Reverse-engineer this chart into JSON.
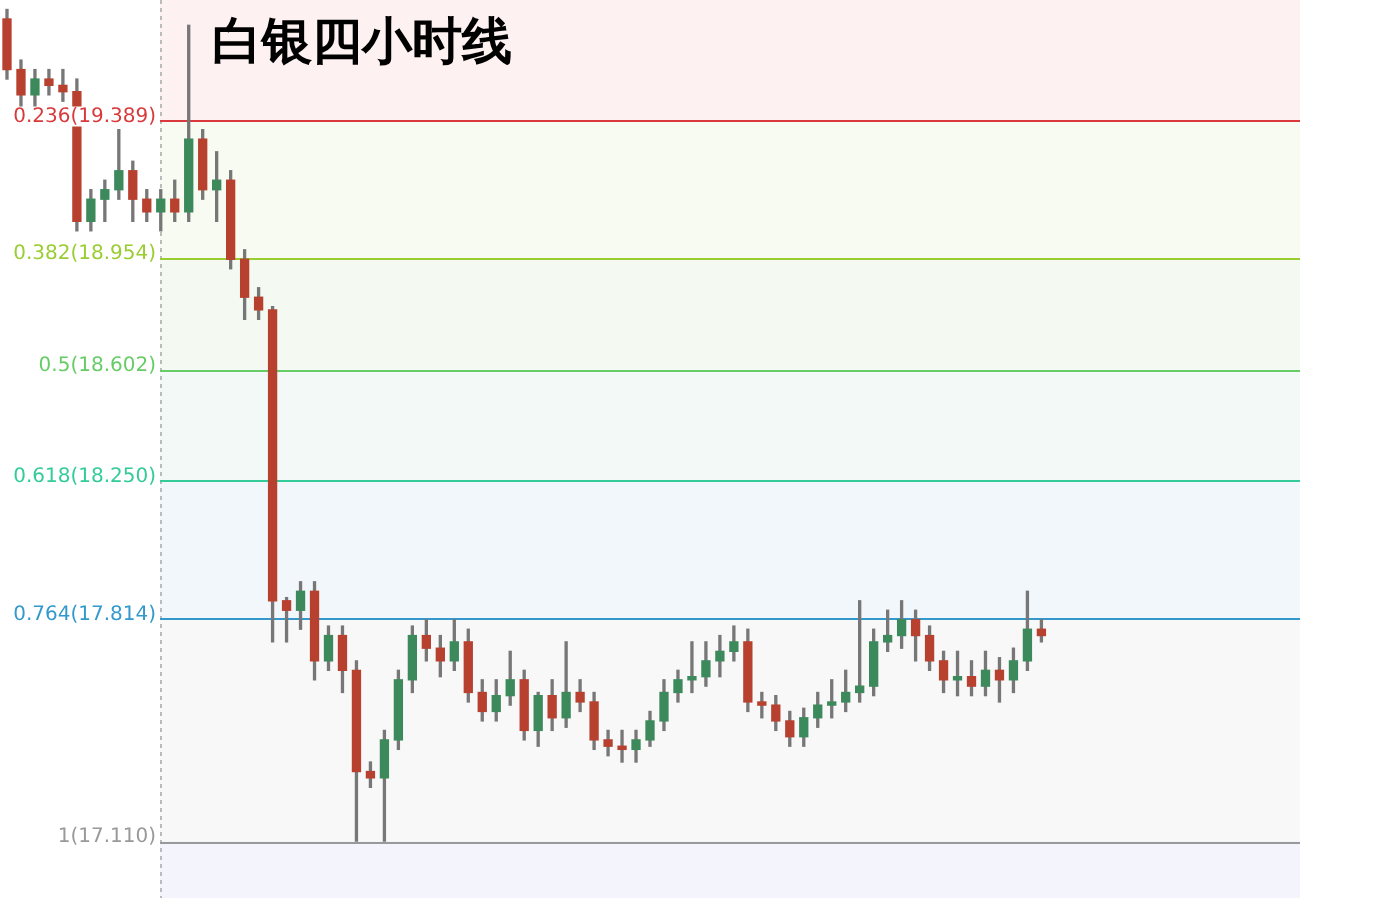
{
  "chart_data": {
    "type": "candlestick",
    "title": "白银四小时线",
    "categories": [
      null,
      null,
      null,
      null,
      null,
      null,
      null,
      null,
      null,
      null,
      null,
      null,
      null,
      null,
      null,
      null,
      null,
      null,
      null,
      null,
      null,
      null,
      null,
      null,
      null,
      null,
      null,
      null,
      null,
      null,
      null,
      null,
      null,
      null,
      null,
      null,
      null,
      null,
      null,
      null,
      null,
      null,
      null,
      null,
      null,
      null,
      null,
      null,
      null,
      null,
      null,
      null,
      null,
      null,
      null,
      null,
      null,
      null,
      null,
      null,
      null,
      null,
      null,
      null,
      null,
      null,
      null,
      null,
      null,
      null,
      null,
      null,
      null,
      null,
      null,
      null,
      null,
      null,
      null,
      null,
      null,
      null,
      null,
      null,
      null,
      null,
      null,
      null,
      null,
      null,
      null,
      null,
      null
    ],
    "ohlc": [
      [
        19.71,
        19.74,
        19.52,
        19.55
      ],
      [
        19.55,
        19.58,
        19.43,
        19.47
      ],
      [
        19.47,
        19.55,
        19.43,
        19.52
      ],
      [
        19.52,
        19.55,
        19.47,
        19.5
      ],
      [
        19.5,
        19.55,
        19.45,
        19.48
      ],
      [
        19.48,
        19.52,
        19.04,
        19.07
      ],
      [
        19.07,
        19.17,
        19.04,
        19.14
      ],
      [
        19.14,
        19.2,
        19.07,
        19.17
      ],
      [
        19.17,
        19.36,
        19.14,
        19.23
      ],
      [
        19.23,
        19.26,
        19.07,
        19.14
      ],
      [
        19.14,
        19.17,
        19.07,
        19.1
      ],
      [
        19.1,
        19.17,
        19.04,
        19.14
      ],
      [
        19.14,
        19.2,
        19.07,
        19.1
      ],
      [
        19.1,
        19.69,
        19.07,
        19.33
      ],
      [
        19.33,
        19.36,
        19.14,
        19.17
      ],
      [
        19.17,
        19.29,
        19.07,
        19.2
      ],
      [
        19.2,
        19.23,
        18.92,
        18.95
      ],
      [
        18.95,
        18.98,
        18.76,
        18.83
      ],
      [
        18.83,
        18.86,
        18.76,
        18.79
      ],
      [
        18.79,
        18.8,
        17.74,
        17.87
      ],
      [
        17.87,
        17.88,
        17.74,
        17.84
      ],
      [
        17.84,
        17.93,
        17.78,
        17.9
      ],
      [
        17.9,
        17.93,
        17.62,
        17.68
      ],
      [
        17.68,
        17.79,
        17.65,
        17.76
      ],
      [
        17.76,
        17.79,
        17.58,
        17.65
      ],
      [
        17.65,
        17.68,
        17.11,
        17.33
      ],
      [
        17.33,
        17.36,
        17.28,
        17.31
      ],
      [
        17.31,
        17.46,
        17.11,
        17.43
      ],
      [
        17.43,
        17.65,
        17.4,
        17.62
      ],
      [
        17.62,
        17.79,
        17.58,
        17.76
      ],
      [
        17.76,
        17.81,
        17.68,
        17.72
      ],
      [
        17.72,
        17.76,
        17.63,
        17.68
      ],
      [
        17.68,
        17.81,
        17.65,
        17.74
      ],
      [
        17.74,
        17.78,
        17.55,
        17.58
      ],
      [
        17.58,
        17.62,
        17.49,
        17.52
      ],
      [
        17.52,
        17.62,
        17.49,
        17.57
      ],
      [
        17.57,
        17.71,
        17.54,
        17.62
      ],
      [
        17.62,
        17.65,
        17.43,
        17.46
      ],
      [
        17.46,
        17.58,
        17.41,
        17.57
      ],
      [
        17.57,
        17.62,
        17.46,
        17.5
      ],
      [
        17.5,
        17.74,
        17.47,
        17.58
      ],
      [
        17.58,
        17.62,
        17.52,
        17.55
      ],
      [
        17.55,
        17.58,
        17.4,
        17.43
      ],
      [
        17.43,
        17.46,
        17.38,
        17.41
      ],
      [
        17.41,
        17.46,
        17.36,
        17.4
      ],
      [
        17.4,
        17.46,
        17.36,
        17.43
      ],
      [
        17.43,
        17.52,
        17.41,
        17.49
      ],
      [
        17.49,
        17.62,
        17.46,
        17.58
      ],
      [
        17.58,
        17.65,
        17.55,
        17.62
      ],
      [
        17.62,
        17.74,
        17.58,
        17.63
      ],
      [
        17.63,
        17.74,
        17.6,
        17.68
      ],
      [
        17.68,
        17.76,
        17.63,
        17.71
      ],
      [
        17.71,
        17.79,
        17.68,
        17.74
      ],
      [
        17.74,
        17.78,
        17.52,
        17.55
      ],
      [
        17.55,
        17.58,
        17.5,
        17.54
      ],
      [
        17.54,
        17.57,
        17.46,
        17.49
      ],
      [
        17.49,
        17.52,
        17.41,
        17.44
      ],
      [
        17.44,
        17.53,
        17.41,
        17.5
      ],
      [
        17.5,
        17.58,
        17.47,
        17.54
      ],
      [
        17.54,
        17.62,
        17.5,
        17.55
      ],
      [
        17.55,
        17.65,
        17.52,
        17.58
      ],
      [
        17.58,
        17.87,
        17.55,
        17.6
      ],
      [
        17.6,
        17.78,
        17.57,
        17.74
      ],
      [
        17.74,
        17.84,
        17.71,
        17.76
      ],
      [
        17.76,
        17.87,
        17.72,
        17.81
      ],
      [
        17.81,
        17.84,
        17.68,
        17.76
      ],
      [
        17.76,
        17.79,
        17.65,
        17.68
      ],
      [
        17.68,
        17.71,
        17.58,
        17.62
      ],
      [
        17.62,
        17.71,
        17.57,
        17.63
      ],
      [
        17.63,
        17.68,
        17.57,
        17.6
      ],
      [
        17.6,
        17.71,
        17.57,
        17.65
      ],
      [
        17.65,
        17.69,
        17.55,
        17.62
      ],
      [
        17.62,
        17.72,
        17.58,
        17.68
      ],
      [
        17.68,
        17.9,
        17.65,
        17.78
      ],
      [
        17.78,
        17.81,
        17.74,
        17.76
      ],
      null,
      null,
      null,
      null,
      null,
      null,
      null,
      null,
      null,
      null,
      null,
      null,
      null,
      null,
      null,
      null,
      null,
      null
    ],
    "ylim": [
      16.93,
      19.77
    ],
    "tick_labels": false,
    "grid": false,
    "bands": [
      {
        "axis": "y",
        "from": 19.389,
        "to": 19.77,
        "color": "#fdf1f1"
      },
      {
        "axis": "y",
        "from": 18.954,
        "to": 19.389,
        "color": "#f8fbf1"
      },
      {
        "axis": "y",
        "from": 18.602,
        "to": 18.954,
        "color": "#f4faf2"
      },
      {
        "axis": "y",
        "from": 18.25,
        "to": 18.602,
        "color": "#f2f9f6"
      },
      {
        "axis": "y",
        "from": 17.814,
        "to": 18.25,
        "color": "#f2f7fb"
      },
      {
        "axis": "y",
        "from": 17.11,
        "to": 17.814,
        "color": "#f8f8f8"
      },
      {
        "axis": "y",
        "from": 16.93,
        "to": 17.11,
        "color": "#f3f4fc"
      }
    ],
    "ref_lines": [
      {
        "axis": "y",
        "value": 19.389,
        "label": "0.236(19.389)",
        "color": "#d9393b"
      },
      {
        "axis": "y",
        "value": 18.954,
        "label": "0.382(18.954)",
        "color": "#9acd32"
      },
      {
        "axis": "y",
        "value": 18.602,
        "label": "0.5(18.602)",
        "color": "#66cc66"
      },
      {
        "axis": "y",
        "value": 18.25,
        "label": "0.618(18.250)",
        "color": "#33cc99"
      },
      {
        "axis": "y",
        "value": 17.814,
        "label": "0.764(17.814)",
        "color": "#3399cc"
      },
      {
        "axis": "y",
        "value": 17.11,
        "label": "1(17.110)",
        "color": "#999999"
      }
    ]
  }
}
